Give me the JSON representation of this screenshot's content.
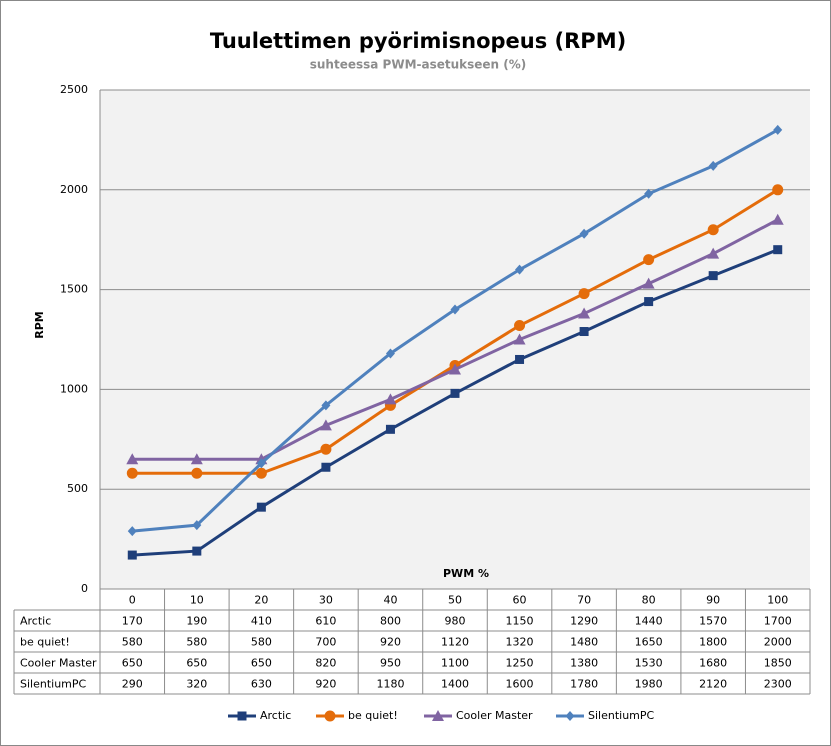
{
  "chart_data": {
    "type": "line",
    "title": "Tuulettimen pyörimisnopeus (RPM)",
    "subtitle": "suhteessa PWM-asetukseen (%)",
    "x_label": "PWM %",
    "y_label": "RPM",
    "categories": [
      "0",
      "10",
      "20",
      "30",
      "40",
      "50",
      "60",
      "70",
      "80",
      "90",
      "100"
    ],
    "series": [
      {
        "name": "Arctic",
        "color": "#1f3f7a",
        "marker": "square",
        "values": [
          170,
          190,
          410,
          610,
          800,
          980,
          1150,
          1290,
          1440,
          1570,
          1700
        ]
      },
      {
        "name": "be quiet!",
        "color": "#e46c0a",
        "marker": "circle",
        "values": [
          580,
          580,
          580,
          700,
          920,
          1120,
          1320,
          1480,
          1650,
          1800,
          2000
        ]
      },
      {
        "name": "Cooler Master",
        "color": "#8064a2",
        "marker": "triangle",
        "values": [
          650,
          650,
          650,
          820,
          950,
          1100,
          1250,
          1380,
          1530,
          1680,
          1850
        ]
      },
      {
        "name": "SilentiumPC",
        "color": "#4f81bd",
        "marker": "diamond",
        "values": [
          290,
          320,
          630,
          920,
          1180,
          1400,
          1600,
          1780,
          1980,
          2120,
          2300
        ]
      }
    ],
    "ylim": [
      0,
      2500
    ],
    "yticks": [
      0,
      500,
      1000,
      1500,
      2000,
      2500
    ],
    "grid": true,
    "legend": "bottom"
  }
}
